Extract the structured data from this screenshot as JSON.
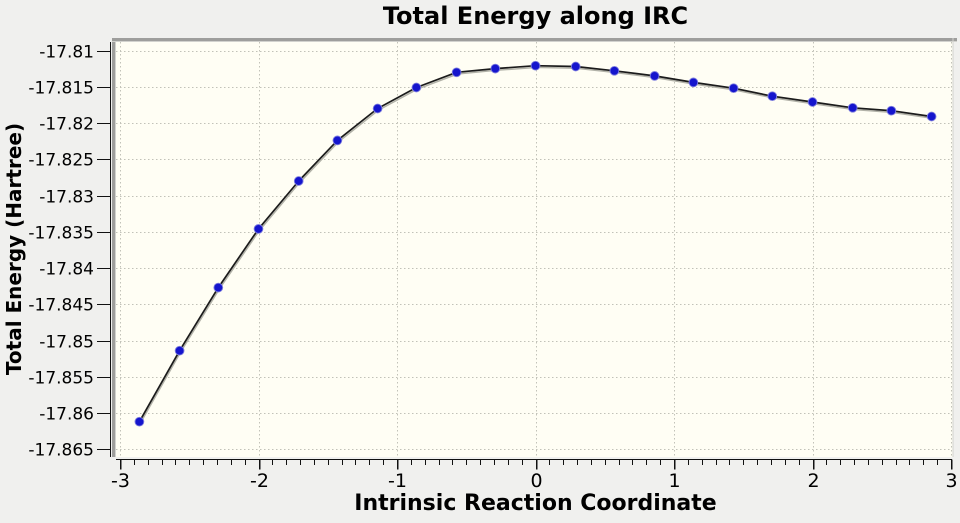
{
  "colors": {
    "page_bg": "#f0f0ee",
    "plot_bg": "#fffef4",
    "border_dark": "#9e9e9c",
    "border_light": "#d2d2ce",
    "grid": "#c2c2b8",
    "axis": "#111111",
    "line": "#1b1b1b",
    "line_shadow": "#b2b2a8",
    "marker_fill": "#1515cd",
    "marker_edge": "#8080de",
    "text": "#000000"
  },
  "chart_data": {
    "type": "line",
    "title": "Total Energy along IRC",
    "xlabel": "Intrinsic Reaction Coordinate",
    "ylabel": "Total Energy (Hartree)",
    "xlim": [
      -3,
      3
    ],
    "ylim": [
      -17.865,
      -17.81
    ],
    "x_ticks": [
      -3,
      -2,
      -1,
      0,
      1,
      2,
      3
    ],
    "y_ticks": [
      -17.81,
      -17.815,
      -17.82,
      -17.825,
      -17.83,
      -17.835,
      -17.84,
      -17.845,
      -17.85,
      -17.855,
      -17.86,
      -17.865
    ],
    "x_minor_tick_step": 0.1,
    "grid": "dotted",
    "legend": "none",
    "series": [
      {
        "name": "Total Energy",
        "marker": "circle",
        "x": [
          -2.86,
          -2.57,
          -2.29,
          -2.0,
          -1.71,
          -1.43,
          -1.14,
          -0.86,
          -0.57,
          -0.29,
          0.0,
          0.29,
          0.57,
          0.86,
          1.14,
          1.43,
          1.71,
          2.0,
          2.29,
          2.57,
          2.86
        ],
        "y": [
          -17.8612,
          -17.8514,
          -17.8427,
          -17.8346,
          -17.828,
          -17.8224,
          -17.818,
          -17.8151,
          -17.813,
          -17.8125,
          -17.8121,
          -17.8122,
          -17.8128,
          -17.8135,
          -17.8144,
          -17.8152,
          -17.8163,
          -17.8171,
          -17.8179,
          -17.8183,
          -17.8191
        ]
      }
    ]
  }
}
